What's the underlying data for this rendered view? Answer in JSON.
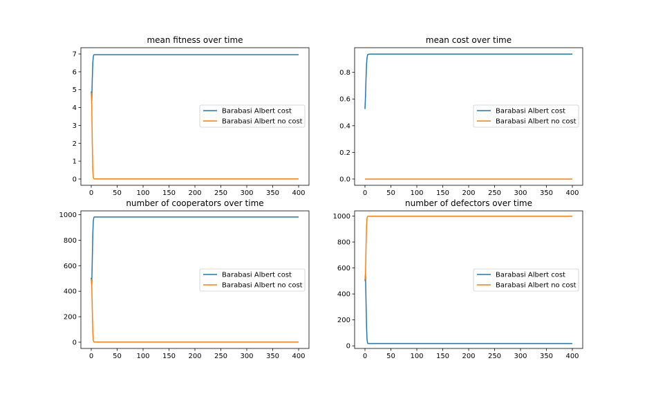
{
  "colors": {
    "series_blue": "#1f77b4",
    "series_orange": "#ff7f0e",
    "axes": "#000000",
    "legend_border": "#cccccc",
    "background": "#ffffff"
  },
  "chart_data": [
    {
      "type": "line",
      "title": "mean fitness over time",
      "xlabel": "",
      "ylabel": "",
      "xlim": [
        -20,
        420
      ],
      "ylim": [
        -0.35,
        7.35
      ],
      "xticks": [
        0,
        50,
        100,
        150,
        200,
        250,
        300,
        350,
        400
      ],
      "yticks": [
        0,
        1,
        2,
        3,
        4,
        5,
        6,
        7
      ],
      "grid": false,
      "legend_position": "center-right",
      "series": [
        {
          "name": "Barabasi Albert cost",
          "color": "#1f77b4",
          "x": [
            0,
            1,
            2,
            3,
            4,
            5,
            6,
            10,
            50,
            100,
            200,
            300,
            400
          ],
          "y": [
            4.9,
            4.4,
            5.6,
            6.5,
            6.85,
            6.95,
            6.96,
            6.96,
            6.96,
            6.96,
            6.96,
            6.96,
            6.96
          ]
        },
        {
          "name": "Barabasi Albert no cost",
          "color": "#ff7f0e",
          "x": [
            0,
            1,
            2,
            3,
            4,
            5,
            6,
            10,
            50,
            100,
            200,
            300,
            400
          ],
          "y": [
            4.85,
            4.1,
            2.0,
            0.5,
            0.1,
            0.02,
            0.01,
            0.01,
            0.01,
            0.01,
            0.01,
            0.01,
            0.01
          ]
        }
      ]
    },
    {
      "type": "line",
      "title": "mean cost over time",
      "xlabel": "",
      "ylabel": "",
      "xlim": [
        -20,
        420
      ],
      "ylim": [
        -0.047,
        0.985
      ],
      "xticks": [
        0,
        50,
        100,
        150,
        200,
        250,
        300,
        350,
        400
      ],
      "yticks": [
        0.0,
        0.2,
        0.4,
        0.6,
        0.8
      ],
      "ytick_labels": [
        "0.0",
        "0.2",
        "0.4",
        "0.6",
        "0.8"
      ],
      "grid": false,
      "legend_position": "center-right",
      "series": [
        {
          "name": "Barabasi Albert cost",
          "color": "#1f77b4",
          "x": [
            0,
            1,
            2,
            3,
            4,
            5,
            6,
            10,
            50,
            100,
            200,
            300,
            400
          ],
          "y": [
            0.525,
            0.62,
            0.75,
            0.86,
            0.91,
            0.93,
            0.935,
            0.937,
            0.937,
            0.937,
            0.937,
            0.937,
            0.937
          ]
        },
        {
          "name": "Barabasi Albert no cost",
          "color": "#ff7f0e",
          "x": [
            0,
            400
          ],
          "y": [
            0,
            0
          ]
        }
      ]
    },
    {
      "type": "line",
      "title": "number of cooperators over time",
      "xlabel": "",
      "ylabel": "",
      "xlim": [
        -20,
        420
      ],
      "ylim": [
        -49,
        1030
      ],
      "xticks": [
        0,
        50,
        100,
        150,
        200,
        250,
        300,
        350,
        400
      ],
      "yticks": [
        0,
        200,
        400,
        600,
        800,
        1000
      ],
      "grid": false,
      "legend_position": "center-right",
      "series": [
        {
          "name": "Barabasi Albert cost",
          "color": "#1f77b4",
          "x": [
            0,
            1,
            2,
            3,
            4,
            5,
            6,
            10,
            50,
            100,
            200,
            300,
            400
          ],
          "y": [
            505,
            450,
            650,
            850,
            950,
            978,
            982,
            982,
            982,
            982,
            982,
            982,
            982
          ]
        },
        {
          "name": "Barabasi Albert no cost",
          "color": "#ff7f0e",
          "x": [
            0,
            1,
            2,
            3,
            4,
            5,
            6,
            10,
            50,
            100,
            200,
            300,
            400
          ],
          "y": [
            495,
            440,
            250,
            80,
            15,
            3,
            1,
            1,
            1,
            1,
            1,
            1,
            1
          ]
        }
      ]
    },
    {
      "type": "line",
      "title": "number of defectors over time",
      "xlabel": "",
      "ylabel": "",
      "xlim": [
        -20,
        420
      ],
      "ylim": [
        -20,
        1040
      ],
      "xticks": [
        0,
        50,
        100,
        150,
        200,
        250,
        300,
        350,
        400
      ],
      "yticks": [
        0,
        200,
        400,
        600,
        800,
        1000
      ],
      "grid": false,
      "legend_position": "center-right",
      "series": [
        {
          "name": "Barabasi Albert cost",
          "color": "#1f77b4",
          "x": [
            0,
            1,
            2,
            3,
            4,
            5,
            6,
            10,
            50,
            100,
            200,
            300,
            400
          ],
          "y": [
            500,
            550,
            350,
            150,
            50,
            22,
            18,
            18,
            18,
            18,
            18,
            18,
            18
          ]
        },
        {
          "name": "Barabasi Albert no cost",
          "color": "#ff7f0e",
          "x": [
            0,
            1,
            2,
            3,
            4,
            5,
            6,
            10,
            50,
            100,
            200,
            300,
            400
          ],
          "y": [
            505,
            560,
            750,
            920,
            985,
            997,
            999,
            999,
            999,
            999,
            999,
            999,
            999
          ]
        }
      ]
    }
  ]
}
